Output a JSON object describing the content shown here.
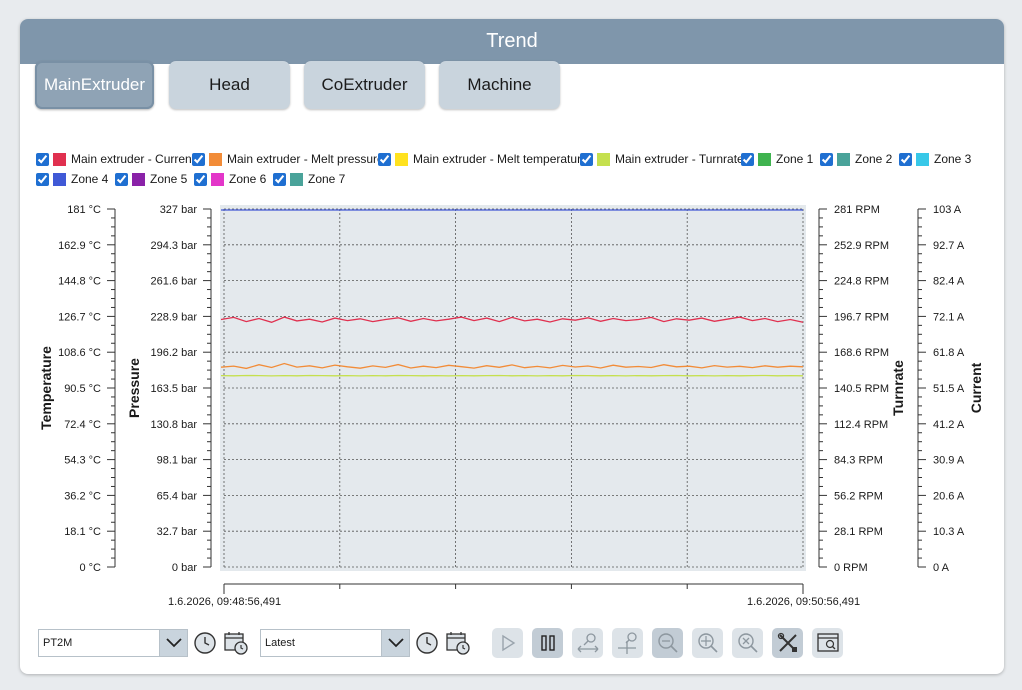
{
  "header": {
    "title": "Trend"
  },
  "tabs": [
    {
      "label": "MainExtruder",
      "active": true
    },
    {
      "label": "Head",
      "active": false
    },
    {
      "label": "CoExtruder",
      "active": false
    },
    {
      "label": "Machine",
      "active": false
    }
  ],
  "legend": [
    {
      "label": "Main extruder - Current",
      "color": "#e0304f",
      "checked": true
    },
    {
      "label": "Main extruder - Melt pressure",
      "color": "#f28c38",
      "checked": true
    },
    {
      "label": "Main extruder - Melt temperature",
      "color": "#ffe21f",
      "checked": true
    },
    {
      "label": "Main extruder - Turnrate",
      "color": "#c5e04e",
      "checked": true
    },
    {
      "label": "Zone 1",
      "color": "#3fb34f",
      "checked": true
    },
    {
      "label": "Zone 2",
      "color": "#4aa39a",
      "checked": true
    },
    {
      "label": "Zone 3",
      "color": "#38c8e8",
      "checked": true
    },
    {
      "label": "Zone 4",
      "color": "#4059d6",
      "checked": true
    },
    {
      "label": "Zone 5",
      "color": "#8a22a8",
      "checked": true
    },
    {
      "label": "Zone 6",
      "color": "#e336c9",
      "checked": true
    },
    {
      "label": "Zone 7",
      "color": "#4aa39a",
      "checked": true
    }
  ],
  "chart_data": {
    "type": "line",
    "axes": {
      "temperature": {
        "title": "Temperature",
        "ticks": [
          "181 °C",
          "162.9 °C",
          "144.8 °C",
          "126.7 °C",
          "108.6 °C",
          "90.5 °C",
          "72.4 °C",
          "54.3 °C",
          "36.2 °C",
          "18.1 °C",
          "0 °C"
        ],
        "range": [
          0,
          181
        ]
      },
      "pressure": {
        "title": "Pressure",
        "ticks": [
          "327 bar",
          "294.3 bar",
          "261.6 bar",
          "228.9 bar",
          "196.2 bar",
          "163.5 bar",
          "130.8 bar",
          "98.1 bar",
          "65.4 bar",
          "32.7 bar",
          "0 bar"
        ],
        "range": [
          0,
          327
        ]
      },
      "turnrate": {
        "title": "Turnrate",
        "ticks": [
          "281 RPM",
          "252.9 RPM",
          "224.8 RPM",
          "196.7 RPM",
          "168.6 RPM",
          "140.5 RPM",
          "112.4 RPM",
          "84.3 RPM",
          "56.2 RPM",
          "28.1 RPM",
          "0 RPM"
        ],
        "range": [
          0,
          281
        ]
      },
      "current": {
        "title": "Current",
        "ticks": [
          "103 A",
          "92.7 A",
          "82.4 A",
          "72.1 A",
          "61.8 A",
          "51.5 A",
          "41.2 A",
          "30.9 A",
          "20.6 A",
          "10.3 A",
          "0 A"
        ],
        "range": [
          0,
          103
        ]
      }
    },
    "x_start": "1.6.2026, 09:48:56,491",
    "x_end": "1.6.2026, 09:50:56,491",
    "grid": true,
    "series": [
      {
        "name": "Main extruder - Current",
        "color": "#e0304f",
        "axis": "current",
        "values": [
          71.2,
          71.8,
          70.6,
          71.5,
          70.4,
          71.9,
          70.8,
          71.3,
          70.5,
          71.6,
          70.9,
          71.4,
          70.6,
          71.2,
          71.7,
          70.7,
          71.5,
          70.8,
          71.3,
          71.9,
          70.9,
          71.6,
          70.6,
          71.8,
          70.8,
          71.3,
          70.5,
          71.4,
          71.0,
          71.7,
          70.7,
          71.5,
          70.9,
          71.2,
          71.8,
          70.6,
          71.4,
          71.0,
          71.6,
          70.7,
          71.3,
          71.9,
          70.9,
          71.5,
          70.6,
          71.2,
          70.4
        ]
      },
      {
        "name": "Main extruder - Melt pressure",
        "color": "#f28c38",
        "axis": "pressure",
        "values": [
          182.5,
          183.5,
          181.4,
          184.8,
          182.2,
          185.9,
          182.6,
          183.8,
          181.9,
          184.4,
          182.9,
          181.6,
          183.7,
          182.3,
          184.9,
          181.8,
          183.4,
          182.1,
          184.2,
          183.0,
          181.7,
          183.9,
          182.4,
          184.6,
          182.0,
          183.2,
          181.9,
          184.1,
          182.7,
          183.6,
          181.8,
          184.3,
          182.5,
          183.1,
          182.2,
          184.8,
          182.9,
          183.4,
          181.9,
          184.0,
          182.6,
          183.3,
          182.1,
          183.8,
          182.5,
          183.4,
          182.9
        ]
      },
      {
        "name": "Main extruder - Turnrate",
        "color": "#c5e04e",
        "axis": "turnrate",
        "values": [
          150.2,
          150.1,
          150.3,
          150.2,
          150.0,
          150.2,
          150.1,
          150.3,
          150.2,
          150.1,
          150.2,
          150.0,
          150.2,
          150.1,
          150.3,
          150.2,
          150.1,
          150.2,
          150.0,
          150.2,
          150.1,
          150.2,
          150.3,
          150.1,
          150.2,
          150.0,
          150.2,
          150.1,
          150.3,
          150.2,
          150.1,
          150.2,
          150.0,
          150.2,
          150.1,
          150.2,
          150.3,
          150.1,
          150.2,
          150.0,
          150.2,
          150.1,
          150.2,
          150.3,
          150.1,
          150.2,
          150.1
        ]
      },
      {
        "name": "Zone 4",
        "color": "#4059d6",
        "axis": "temperature",
        "values": [
          180.5,
          180.5,
          180.5,
          180.5,
          180.5,
          180.5,
          180.5,
          180.5,
          180.5,
          180.5,
          180.5,
          180.5,
          180.5,
          180.5,
          180.5,
          180.5,
          180.5,
          180.5,
          180.5,
          180.5,
          180.5,
          180.5,
          180.5,
          180.5,
          180.5,
          180.5,
          180.5,
          180.5,
          180.5,
          180.5,
          180.5,
          180.5,
          180.5,
          180.5,
          180.5,
          180.5,
          180.5,
          180.5,
          180.5,
          180.5,
          180.5,
          180.5,
          180.5,
          180.5,
          180.5,
          180.5,
          180.5
        ]
      }
    ]
  },
  "controls": {
    "range_select": "PT2M",
    "mode_select": "Latest"
  },
  "icons": {
    "range_clock": "clock-icon",
    "range_calendar": "calendar-clock-icon",
    "mode_clock": "clock-icon",
    "mode_calendar": "calendar-clock-icon",
    "play": "play-icon",
    "pause": "pause-icon",
    "zoom_x": "zoom-x-icon",
    "zoom_xy": "zoom-xy-icon",
    "zoom_in": "zoom-in-icon",
    "zoom_move": "zoom-move-icon",
    "zoom_reset": "zoom-reset-icon",
    "settings": "tools-icon",
    "inspect": "inspect-window-icon"
  }
}
